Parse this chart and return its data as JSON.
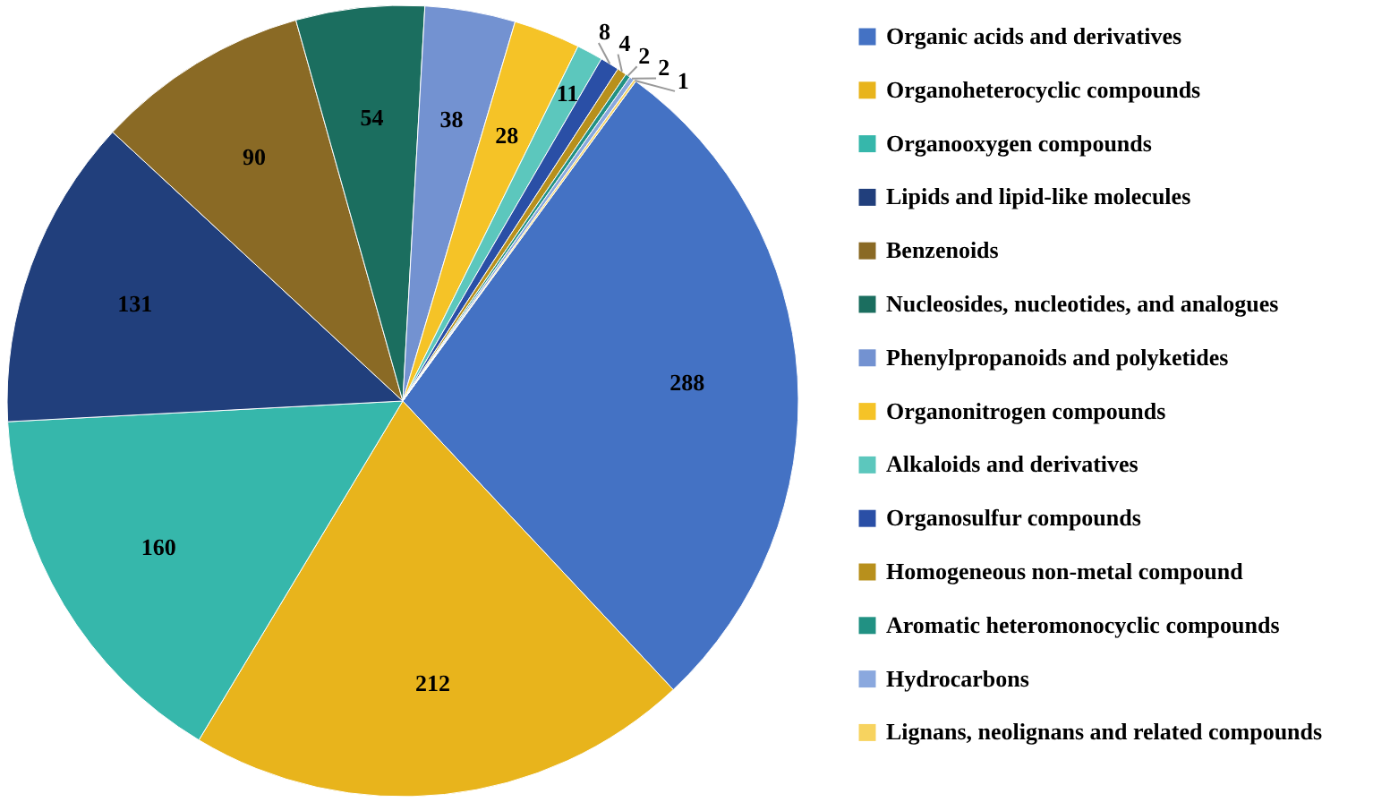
{
  "chart_data": {
    "type": "pie",
    "categories": [
      "Organic acids and derivatives",
      "Organoheterocyclic compounds",
      "Organooxygen compounds",
      "Lipids and lipid-like molecules",
      "Benzenoids",
      "Nucleosides, nucleotides, and analogues",
      "Phenylpropanoids and polyketides",
      "Organonitrogen compounds",
      "Alkaloids and derivatives",
      "Organosulfur compounds",
      "Homogeneous non-metal compound",
      "Aromatic heteromonocyclic compounds",
      "Hydrocarbons",
      "Lignans, neolignans and related compounds"
    ],
    "values": [
      288,
      212,
      160,
      131,
      90,
      54,
      38,
      28,
      11,
      8,
      4,
      2,
      2,
      1
    ],
    "colors": [
      "#4472c4",
      "#e8b41c",
      "#36b7ab",
      "#213f7c",
      "#8a6a25",
      "#1b6e5f",
      "#7392d1",
      "#f5c327",
      "#5cc7bd",
      "#2a4fa6",
      "#b8901c",
      "#219183",
      "#8aa8de",
      "#f7d35f"
    ],
    "data_labels": true,
    "legend": "right"
  }
}
